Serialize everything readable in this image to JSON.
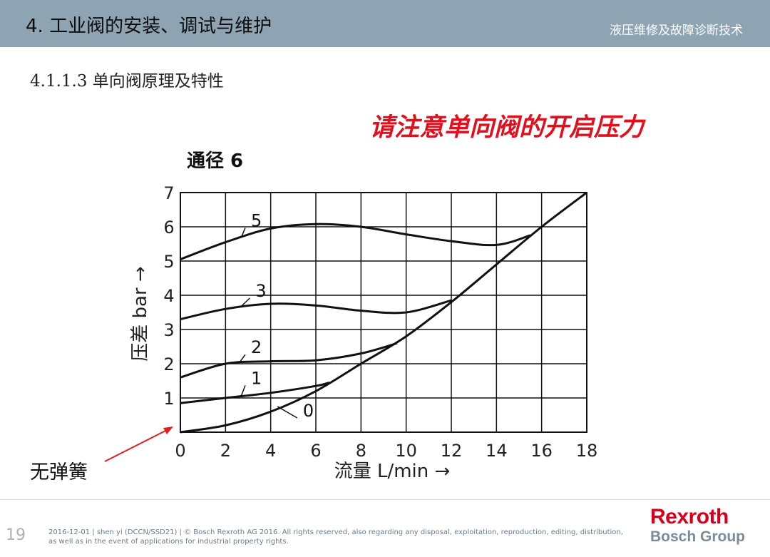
{
  "header": {
    "title": "4. 工业阀的安装、调试与维护",
    "subtitle": "液压维修及故障诊断技术"
  },
  "section": {
    "title": "4.1.1.3 单向阀原理及特性"
  },
  "notice": "请注意单向阀的开启压力",
  "note": "无弹簧",
  "chart_data": {
    "type": "line",
    "title": "通径 6",
    "xlabel": "流量 L/min →",
    "ylabel": "压差 bar →",
    "xlim": [
      0,
      18
    ],
    "ylim": [
      0,
      7
    ],
    "xticks": [
      "0",
      "2",
      "4",
      "6",
      "8",
      "10",
      "12",
      "14",
      "16",
      "18"
    ],
    "yticks": [
      "1",
      "2",
      "3",
      "4",
      "5",
      "6",
      "7"
    ],
    "grid": true,
    "series": [
      {
        "name": "0",
        "x": [
          0,
          2,
          4,
          6,
          8,
          10,
          12,
          14,
          16,
          18
        ],
        "y": [
          0,
          0.2,
          0.6,
          1.2,
          2.0,
          2.8,
          3.8,
          4.9,
          6.0,
          7.0
        ]
      },
      {
        "name": "1",
        "x": [
          0,
          2,
          4,
          6,
          6.6
        ],
        "y": [
          0.85,
          1.0,
          1.15,
          1.35,
          1.45
        ]
      },
      {
        "name": "2",
        "x": [
          0,
          2,
          4,
          6,
          8,
          9.6
        ],
        "y": [
          1.6,
          2.0,
          2.07,
          2.1,
          2.3,
          2.6
        ]
      },
      {
        "name": "3",
        "x": [
          0,
          2,
          4,
          6,
          8,
          10,
          12
        ],
        "y": [
          3.3,
          3.6,
          3.75,
          3.7,
          3.55,
          3.5,
          3.85
        ]
      },
      {
        "name": "5",
        "x": [
          0,
          2,
          4,
          6,
          8,
          10,
          12,
          14,
          15.5
        ],
        "y": [
          5.05,
          5.55,
          5.95,
          6.08,
          6.0,
          5.78,
          5.58,
          5.47,
          5.75
        ]
      }
    ]
  },
  "footer": {
    "page": "19",
    "text": "2016-12-01 | shen yi (DCCN/SSD21) | © Bosch Rexroth AG 2016. All rights reserved, also regarding any disposal, exploitation, reproduction, editing, distribution, as well as in the event of applications for industrial property rights.",
    "logo": "Rexroth",
    "logo_sub": "Bosch Group"
  }
}
